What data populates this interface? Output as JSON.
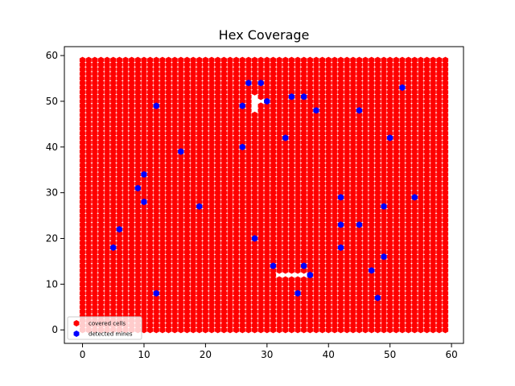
{
  "chart_data": {
    "type": "scatter",
    "title": "Hex Coverage",
    "xlim": [
      -2.95,
      61.95
    ],
    "ylim": [
      -2.95,
      61.95
    ],
    "xticks": [
      0,
      10,
      20,
      30,
      40,
      50,
      60
    ],
    "yticks": [
      0,
      10,
      20,
      30,
      40,
      50,
      60
    ],
    "legend": "lower left",
    "series": [
      {
        "name": "covered cells",
        "color": "#ff0000",
        "marker": "hexagon",
        "x": [
          0,
          1,
          2,
          3,
          4,
          5,
          6,
          7,
          8,
          9,
          10,
          11,
          12,
          13,
          14,
          15,
          16,
          17,
          18,
          19,
          20,
          21,
          22,
          23,
          24,
          25,
          26,
          27,
          28,
          29,
          30,
          31,
          32,
          33,
          34,
          35,
          36,
          37,
          38,
          39,
          40,
          41,
          42,
          43,
          44,
          45,
          46,
          47,
          48,
          49,
          50,
          51,
          52,
          53,
          54,
          55,
          56,
          57,
          58,
          59
        ],
        "y": [
          0,
          1,
          2,
          3,
          4,
          5,
          6,
          7,
          8,
          9,
          10,
          11,
          12,
          13,
          14,
          15,
          16,
          17,
          18,
          19,
          20,
          21,
          22,
          23,
          24,
          25,
          26,
          27,
          28,
          29,
          30,
          31,
          32,
          33,
          34,
          35,
          36,
          37,
          38,
          39,
          40,
          41,
          42,
          43,
          44,
          45,
          46,
          47,
          48,
          49,
          50,
          51,
          52,
          53,
          54,
          55,
          56,
          57,
          58,
          59
        ],
        "uncovered": [
          [
            28,
            48
          ],
          [
            28,
            49
          ],
          [
            28,
            50
          ],
          [
            28,
            51
          ],
          [
            29,
            50
          ],
          [
            32,
            12
          ],
          [
            33,
            12
          ],
          [
            34,
            12
          ],
          [
            35,
            12
          ],
          [
            36,
            12
          ]
        ]
      },
      {
        "name": "detected mines",
        "color": "#0000ff",
        "marker": "hexagon",
        "x": [
          27,
          29,
          52,
          34,
          36,
          26,
          30,
          12,
          38,
          45,
          33,
          50,
          26,
          16,
          10,
          9,
          42,
          54,
          49,
          19,
          10,
          42,
          45,
          6,
          28,
          5,
          42,
          49,
          31,
          36,
          47,
          37,
          12,
          35,
          48
        ],
        "y": [
          54,
          54,
          53,
          51,
          51,
          49,
          50,
          49,
          48,
          48,
          42,
          42,
          40,
          39,
          34,
          31,
          29,
          29,
          27,
          27,
          28,
          23,
          23,
          22,
          20,
          18,
          18,
          16,
          14,
          14,
          13,
          12,
          8,
          8,
          7
        ]
      }
    ]
  }
}
